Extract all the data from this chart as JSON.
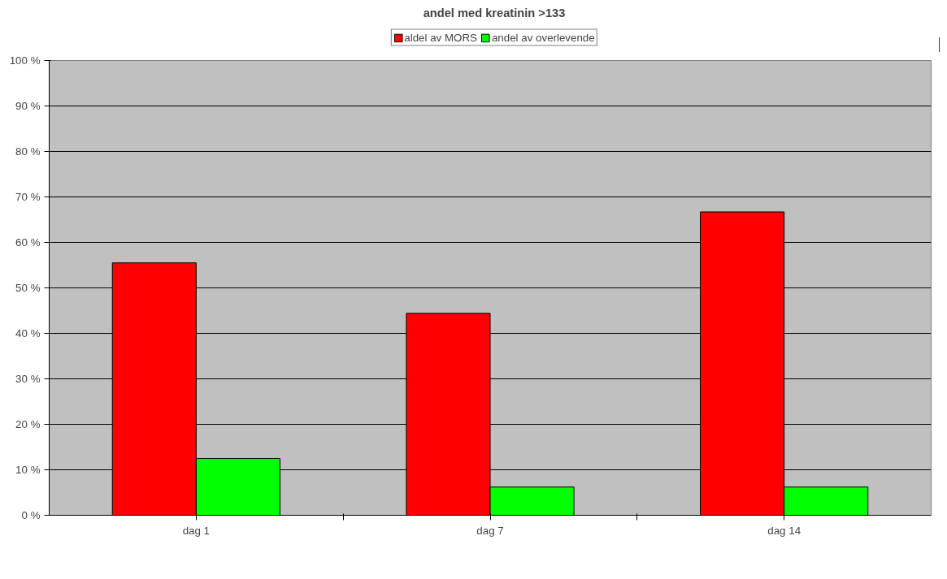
{
  "chart_data": {
    "type": "bar",
    "title": "andel med kreatinin >133",
    "categories": [
      "dag 1",
      "dag 7",
      "dag 14"
    ],
    "series": [
      {
        "name": "aldel av MORS",
        "color": "#ff0000",
        "values": [
          55.5,
          44.4,
          66.7
        ]
      },
      {
        "name": "andel av overlevende",
        "color": "#00ff00",
        "values": [
          12.5,
          6.2,
          6.2
        ]
      }
    ],
    "ylim": [
      0,
      100
    ],
    "yticks": [
      {
        "value": 0,
        "label": "0 %"
      },
      {
        "value": 10,
        "label": "10 %"
      },
      {
        "value": 20,
        "label": "20 %"
      },
      {
        "value": 30,
        "label": "30 %"
      },
      {
        "value": 40,
        "label": "40 %"
      },
      {
        "value": 50,
        "label": "50 %"
      },
      {
        "value": 60,
        "label": "60 %"
      },
      {
        "value": 70,
        "label": "70 %"
      },
      {
        "value": 80,
        "label": "80 %"
      },
      {
        "value": 90,
        "label": "90 %"
      },
      {
        "value": 100,
        "label": "100 %"
      }
    ],
    "grid": "y",
    "legend": "top"
  }
}
